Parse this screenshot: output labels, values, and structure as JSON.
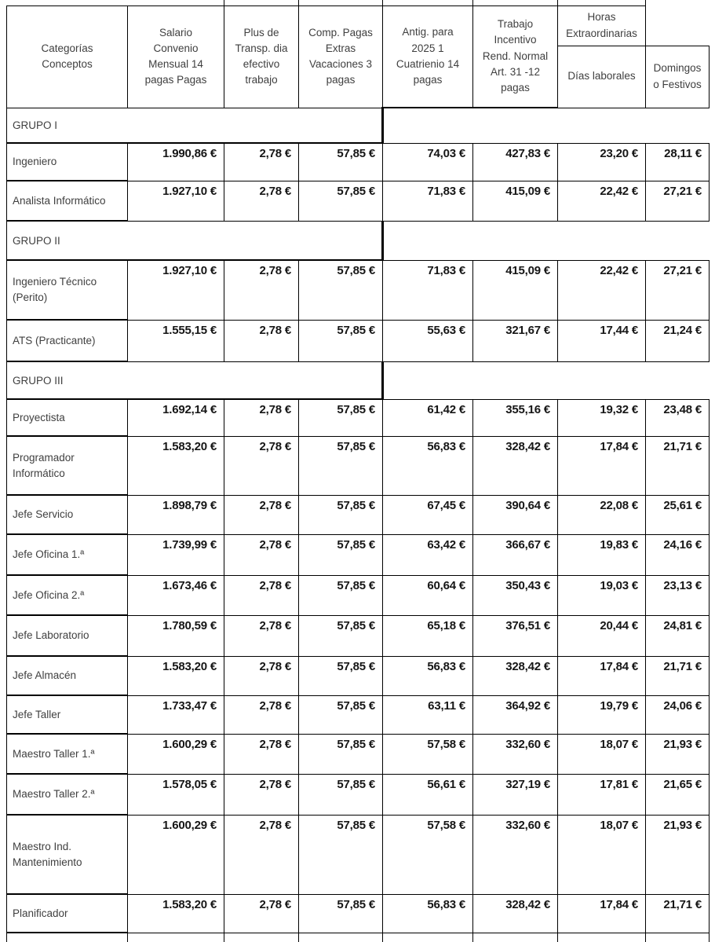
{
  "colors": {
    "background": "#ffffff",
    "grid": "#000000",
    "label_text": "#3f3f3f",
    "number_text": "#161616"
  },
  "table": {
    "headers": {
      "categorias": "Categorías\nConceptos",
      "salario": "Salario\nConvenio\nMensual 14\npagas Pagas",
      "plus_transporte": "Plus de\nTransp. dia\nefectivo\ntrabajo",
      "comp_pagas": "Comp. Pagas\nExtras\nVacaciones 3\npagas",
      "antiguedad": "Antig. para\n2025 1\nCuatrienio 14\npagas",
      "trabajo_incentivo": "Trabajo\nIncentivo\nRend. Normal\nArt. 31 -12\npagas",
      "horas_extraordinarias": "Horas\nExtraordinarias",
      "dias_laborales": "Días laborales",
      "domingos_festivos": "Domingos\no Festivos"
    },
    "rows": [
      {
        "type": "group",
        "label": "GRUPO I"
      },
      {
        "type": "data",
        "label": "Ingeniero",
        "values": [
          "1.990,86 €",
          "2,78 €",
          "57,85 €",
          "74,03 €",
          "427,83 €",
          "23,20 €",
          "28,11 €"
        ]
      },
      {
        "type": "data",
        "label": "Analista Informático",
        "values": [
          "1.927,10 €",
          "2,78 €",
          "57,85 €",
          "71,83 €",
          "415,09 €",
          "22,42 €",
          "27,21 €"
        ]
      },
      {
        "type": "group",
        "label": "GRUPO II"
      },
      {
        "type": "data",
        "label": "Ingeniero Técnico (Perito)",
        "values": [
          "1.927,10 €",
          "2,78 €",
          "57,85 €",
          "71,83 €",
          "415,09 €",
          "22,42 €",
          "27,21 €"
        ]
      },
      {
        "type": "data",
        "label": "ATS (Practicante)",
        "values": [
          "1.555,15 €",
          "2,78 €",
          "57,85 €",
          "55,63 €",
          "321,67 €",
          "17,44 €",
          "21,24 €"
        ]
      },
      {
        "type": "group",
        "label": "GRUPO III"
      },
      {
        "type": "data",
        "label": "Proyectista",
        "values": [
          "1.692,14 €",
          "2,78 €",
          "57,85 €",
          "61,42 €",
          "355,16 €",
          "19,32 €",
          "23,48 €"
        ]
      },
      {
        "type": "data",
        "label": "Programador Informático",
        "values": [
          "1.583,20 €",
          "2,78 €",
          "57,85 €",
          "56,83 €",
          "328,42 €",
          "17,84 €",
          "21,71 €"
        ]
      },
      {
        "type": "data",
        "label": "Jefe Servicio",
        "values": [
          "1.898,79 €",
          "2,78 €",
          "57,85 €",
          "67,45 €",
          "390,64 €",
          "22,08 €",
          "25,61 €"
        ]
      },
      {
        "type": "data",
        "label": "Jefe Oficina 1.ª",
        "values": [
          "1.739,99 €",
          "2,78 €",
          "57,85 €",
          "63,42 €",
          "366,67 €",
          "19,83 €",
          "24,16 €"
        ]
      },
      {
        "type": "data",
        "label": "Jefe Oficina 2.ª",
        "values": [
          "1.673,46 €",
          "2,78 €",
          "57,85 €",
          "60,64 €",
          "350,43 €",
          "19,03 €",
          "23,13 €"
        ]
      },
      {
        "type": "data",
        "label": "Jefe Laboratorio",
        "values": [
          "1.780,59 €",
          "2,78 €",
          "57,85 €",
          "65,18 €",
          "376,51 €",
          "20,44 €",
          "24,81 €"
        ]
      },
      {
        "type": "data",
        "label": "Jefe Almacén",
        "values": [
          "1.583,20 €",
          "2,78 €",
          "57,85 €",
          "56,83 €",
          "328,42 €",
          "17,84 €",
          "21,71 €"
        ]
      },
      {
        "type": "data",
        "label": "Jefe Taller",
        "values": [
          "1.733,47 €",
          "2,78 €",
          "57,85 €",
          "63,11 €",
          "364,92 €",
          "19,79 €",
          "24,06 €"
        ]
      },
      {
        "type": "data",
        "label": "Maestro Taller 1.ª",
        "values": [
          "1.600,29 €",
          "2,78 €",
          "57,85 €",
          "57,58 €",
          "332,60 €",
          "18,07 €",
          "21,93 €"
        ]
      },
      {
        "type": "data",
        "label": "Maestro Taller 2.ª",
        "values": [
          "1.578,05 €",
          "2,78 €",
          "57,85 €",
          "56,61 €",
          "327,19 €",
          "17,81 €",
          "21,65 €"
        ]
      },
      {
        "type": "data",
        "label": "Maestro Ind. Mantenimiento",
        "values": [
          "1.600,29 €",
          "2,78 €",
          "57,85 €",
          "57,58 €",
          "332,60 €",
          "18,07 €",
          "21,93 €"
        ]
      },
      {
        "type": "data",
        "label": "Planificador",
        "values": [
          "1.583,20 €",
          "2,78 €",
          "57,85 €",
          "56,83 €",
          "328,42 €",
          "17,84 €",
          "21,71 €"
        ]
      }
    ]
  }
}
